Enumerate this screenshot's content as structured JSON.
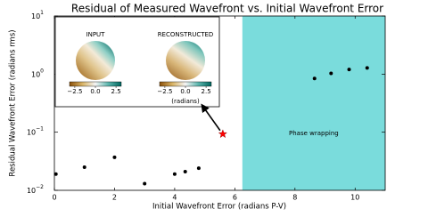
{
  "chart_data": {
    "type": "scatter",
    "title": "Residual of Measured Wavefront vs. Initial Wavefront Error",
    "x_label": "Initial Wavefront Error (radians P-V)",
    "y_label": "Residual Wavefront Error (radians rms)",
    "xlim": [
      0,
      11
    ],
    "xticks": [
      0,
      2,
      4,
      6,
      8,
      10
    ],
    "ylim": [
      0.01,
      10
    ],
    "y_scale": "log",
    "yticks": [
      {
        "value": 0.01,
        "label": "10",
        "sup": "−2"
      },
      {
        "value": 0.1,
        "label": "10",
        "sup": "−1"
      },
      {
        "value": 1,
        "label": "10",
        "sup": "0"
      },
      {
        "value": 10,
        "label": "10",
        "sup": "1"
      }
    ],
    "span": {
      "x": [
        6.25,
        11
      ],
      "color": "#7adcdc",
      "label": "Phase wrapping"
    },
    "points": {
      "color": "#000000",
      "x": [
        0.05,
        1.0,
        2.0,
        3.0,
        4.0,
        4.35,
        4.8,
        8.65,
        9.2,
        9.8,
        10.4
      ],
      "y": [
        0.019,
        0.025,
        0.037,
        0.013,
        0.019,
        0.021,
        0.024,
        0.84,
        1.03,
        1.2,
        1.28
      ]
    },
    "highlight": {
      "x": 5.6,
      "y": 0.093,
      "color": "#ff0000"
    },
    "inset": {
      "clim": [
        -3.14,
        3.14
      ],
      "colorbar_label": "(radians)",
      "panels": [
        {
          "title": "INPUT",
          "colorbar_ticks": [
            {
              "value": -2.5,
              "label": "−2.5"
            },
            {
              "value": 0,
              "label": "0.0"
            },
            {
              "value": 2.5,
              "label": "2.5"
            }
          ]
        },
        {
          "title": "RECONSTRUCTED",
          "colorbar_ticks": [
            {
              "value": -2.5,
              "label": "−2.5"
            },
            {
              "value": 0,
              "label": "0.0"
            },
            {
              "value": 2.5,
              "label": "2.5"
            }
          ]
        }
      ]
    }
  }
}
